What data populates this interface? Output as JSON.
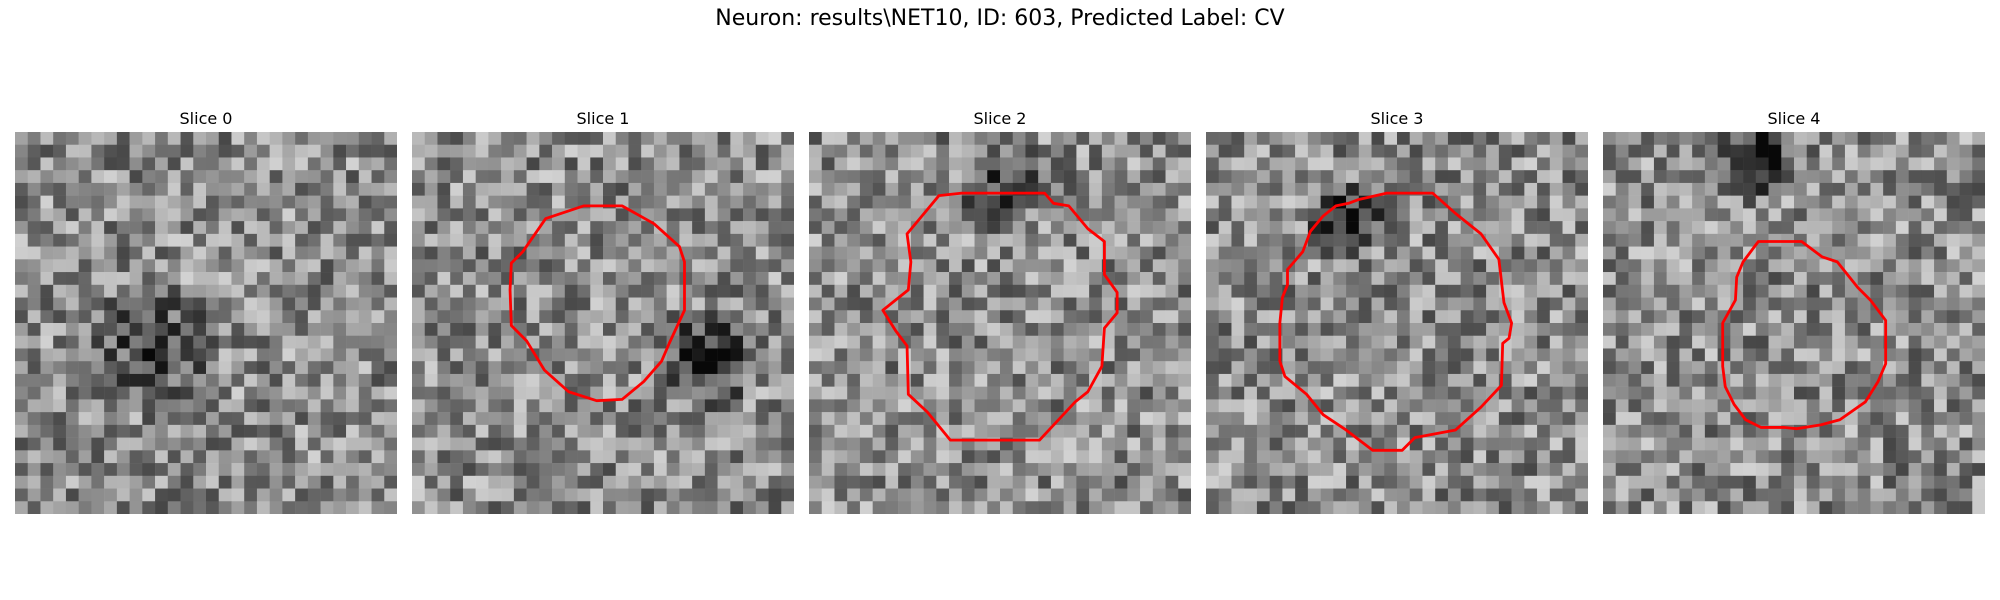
{
  "figure": {
    "title": "Neuron: results\\NET10, ID: 603, Predicted Label: CV"
  },
  "slices": [
    {
      "title": "Slice 0",
      "has_contour": false,
      "image": "grayscale-noise-image"
    },
    {
      "title": "Slice 1",
      "has_contour": true,
      "image": "grayscale-noise-image"
    },
    {
      "title": "Slice 2",
      "has_contour": true,
      "image": "grayscale-noise-image"
    },
    {
      "title": "Slice 3",
      "has_contour": true,
      "image": "grayscale-noise-image"
    },
    {
      "title": "Slice 4",
      "has_contour": true,
      "image": "grayscale-noise-image"
    }
  ],
  "colors": {
    "contour": "#ff0000"
  }
}
